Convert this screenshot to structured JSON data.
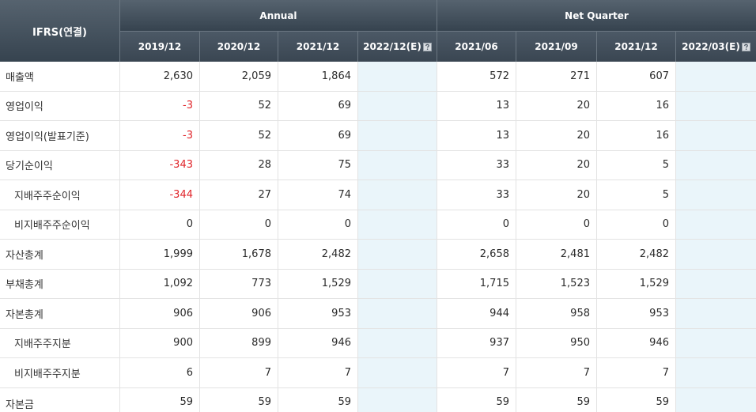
{
  "table": {
    "basis_label": "IFRS(연결)",
    "groups": [
      "Annual",
      "Net Quarter"
    ],
    "periods": [
      "2019/12",
      "2020/12",
      "2021/12",
      "2022/12(E)",
      "2021/06",
      "2021/09",
      "2021/12",
      "2022/03(E)"
    ],
    "rows": [
      {
        "label": "매출액",
        "values": [
          "2,630",
          "2,059",
          "1,864",
          "",
          "572",
          "271",
          "607",
          ""
        ]
      },
      {
        "label": "영업이익",
        "values": [
          "-3",
          "52",
          "69",
          "",
          "13",
          "20",
          "16",
          ""
        ]
      },
      {
        "label": "영업이익(발표기준)",
        "values": [
          "-3",
          "52",
          "69",
          "",
          "13",
          "20",
          "16",
          ""
        ]
      },
      {
        "label": "당기순이익",
        "values": [
          "-343",
          "28",
          "75",
          "",
          "33",
          "20",
          "5",
          ""
        ]
      },
      {
        "label": "지배주주순이익",
        "values": [
          "-344",
          "27",
          "74",
          "",
          "33",
          "20",
          "5",
          ""
        ]
      },
      {
        "label": "비지배주주순이익",
        "values": [
          "0",
          "0",
          "0",
          "",
          "0",
          "0",
          "0",
          ""
        ]
      },
      {
        "label": "자산총계",
        "values": [
          "1,999",
          "1,678",
          "2,482",
          "",
          "2,658",
          "2,481",
          "2,482",
          ""
        ]
      },
      {
        "label": "부채총계",
        "values": [
          "1,092",
          "773",
          "1,529",
          "",
          "1,715",
          "1,523",
          "1,529",
          ""
        ]
      },
      {
        "label": "자본총계",
        "values": [
          "906",
          "906",
          "953",
          "",
          "944",
          "958",
          "953",
          ""
        ]
      },
      {
        "label": "지배주주지분",
        "values": [
          "900",
          "899",
          "946",
          "",
          "937",
          "950",
          "946",
          ""
        ]
      },
      {
        "label": "비지배주주지분",
        "values": [
          "6",
          "7",
          "7",
          "",
          "7",
          "7",
          "7",
          ""
        ]
      },
      {
        "label": "자본금",
        "values": [
          "59",
          "59",
          "59",
          "",
          "59",
          "59",
          "59",
          ""
        ]
      }
    ]
  },
  "icons": {
    "estimate_help": "help-icon"
  },
  "colors": {
    "header_top": "#56636f",
    "header_bottom": "#36434f",
    "estimate_cell": "#eaf5fa",
    "negative": "#e0262b",
    "text": "#2b2b2b"
  }
}
